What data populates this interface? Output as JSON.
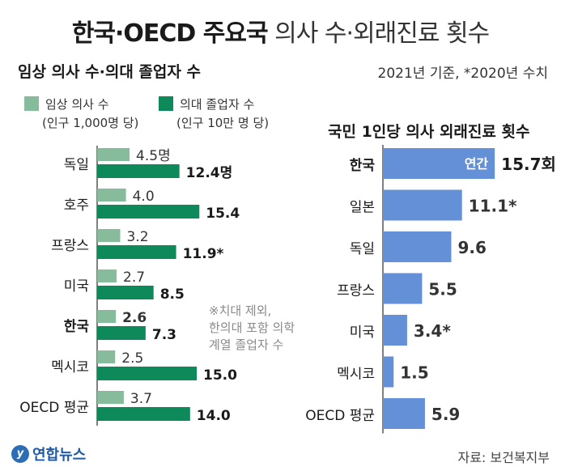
{
  "title": {
    "bold": "한국·OECD 주요국",
    "regular": "의사 수·외래진료 횟수"
  },
  "left_subtitle": "임상 의사 수·의대 졸업자 수",
  "basis_note": "2021년 기준, *2020년 수치",
  "legend": {
    "a_label": "임상 의사 수",
    "a_unit": "(인구 1,000명 당)",
    "b_label": "의대 졸업자 수",
    "b_unit": "(인구 10만 명 당)"
  },
  "right_subtitle": "국민 1인당 의사 외래진료 횟수",
  "footnote": [
    "※치대 제외,",
    "한의대 포함 의학",
    "계열 졸업자 수"
  ],
  "logo": {
    "mark": "y",
    "name": "연합뉴스"
  },
  "source": "자료: 보건복지부",
  "colors": {
    "doctors": "#86bc9b",
    "graduates": "#0e8a5a",
    "visits": "#6390d6",
    "axis": "#555555"
  },
  "chart_data": [
    {
      "type": "bar",
      "orientation": "horizontal",
      "title": "임상 의사 수·의대 졸업자 수",
      "categories": [
        "독일",
        "호주",
        "프랑스",
        "미국",
        "한국",
        "멕시코",
        "OECD 평균"
      ],
      "highlight": "한국",
      "series": [
        {
          "name": "임상 의사 수",
          "unit_note": "(인구 1,000명 당)",
          "values": [
            4.5,
            4.0,
            3.2,
            2.7,
            2.6,
            2.5,
            3.7
          ],
          "labels": [
            "4.5명",
            "4.0",
            "3.2",
            "2.7",
            "2.6",
            "2.5",
            "3.7"
          ]
        },
        {
          "name": "의대 졸업자 수",
          "unit_note": "(인구 10만 명 당)",
          "values": [
            12.4,
            15.4,
            11.9,
            8.5,
            7.3,
            15.0,
            14.0
          ],
          "labels": [
            "12.4명",
            "15.4",
            "11.9*",
            "8.5",
            "7.3",
            "15.0",
            "14.0"
          ]
        }
      ]
    },
    {
      "type": "bar",
      "orientation": "horizontal",
      "title": "국민 1인당 의사 외래진료 횟수",
      "categories": [
        "한국",
        "일본",
        "독일",
        "프랑스",
        "미국",
        "멕시코",
        "OECD 평균"
      ],
      "highlight": "한국",
      "values": [
        15.7,
        11.1,
        9.6,
        5.5,
        3.4,
        1.5,
        5.9
      ],
      "labels": [
        "15.7회",
        "11.1*",
        "9.6",
        "5.5",
        "3.4*",
        "1.5",
        "5.9"
      ],
      "inside_label": "연간"
    }
  ]
}
